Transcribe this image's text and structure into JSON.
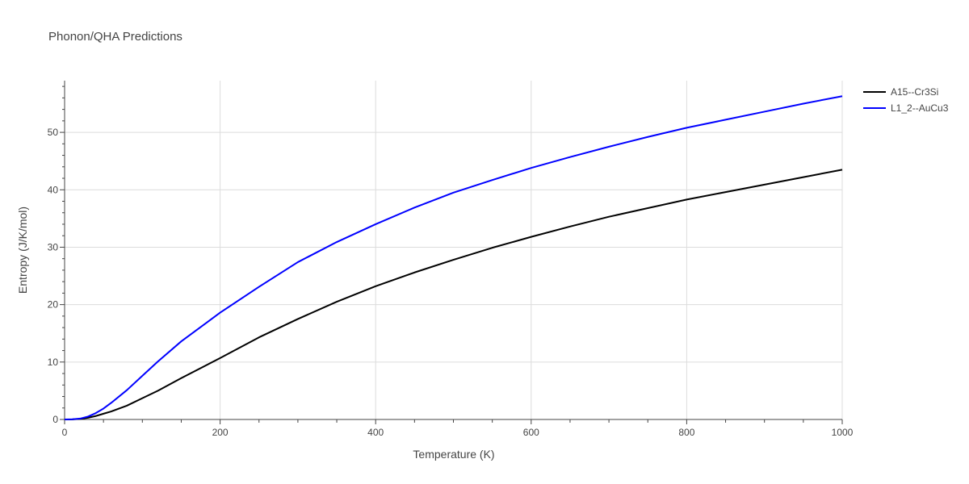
{
  "chart_data": {
    "type": "line",
    "title": "Phonon/QHA Predictions",
    "xlabel": "Temperature (K)",
    "ylabel": "Entropy (J/K/mol)",
    "xlim": [
      0,
      1000
    ],
    "ylim": [
      0,
      59
    ],
    "xticks": [
      0,
      200,
      400,
      600,
      800,
      1000
    ],
    "yticks": [
      0,
      10,
      20,
      30,
      40,
      50
    ],
    "grid": true,
    "legend_position": "top-right",
    "series": [
      {
        "name": "A15--Cr3Si",
        "color": "#000000",
        "x": [
          0,
          10,
          20,
          30,
          40,
          50,
          60,
          80,
          100,
          120,
          150,
          200,
          250,
          300,
          350,
          400,
          450,
          500,
          550,
          600,
          650,
          700,
          750,
          800,
          850,
          900,
          950,
          1000
        ],
        "y": [
          0,
          0.02,
          0.1,
          0.3,
          0.6,
          1.0,
          1.4,
          2.4,
          3.7,
          5.0,
          7.2,
          10.7,
          14.3,
          17.5,
          20.5,
          23.2,
          25.6,
          27.8,
          29.9,
          31.8,
          33.6,
          35.3,
          36.8,
          38.3,
          39.6,
          40.9,
          42.2,
          43.5
        ]
      },
      {
        "name": "L1_2--AuCu3",
        "color": "#0000ff",
        "x": [
          0,
          10,
          20,
          30,
          40,
          50,
          60,
          80,
          100,
          120,
          150,
          200,
          250,
          300,
          350,
          400,
          450,
          500,
          550,
          600,
          650,
          700,
          750,
          800,
          850,
          900,
          950,
          1000
        ],
        "y": [
          0,
          0.03,
          0.15,
          0.5,
          1.1,
          1.9,
          2.9,
          5.1,
          7.6,
          10.1,
          13.6,
          18.6,
          23.1,
          27.4,
          30.9,
          34.0,
          36.9,
          39.5,
          41.7,
          43.8,
          45.7,
          47.5,
          49.2,
          50.8,
          52.2,
          53.6,
          55.0,
          56.3
        ]
      }
    ]
  }
}
